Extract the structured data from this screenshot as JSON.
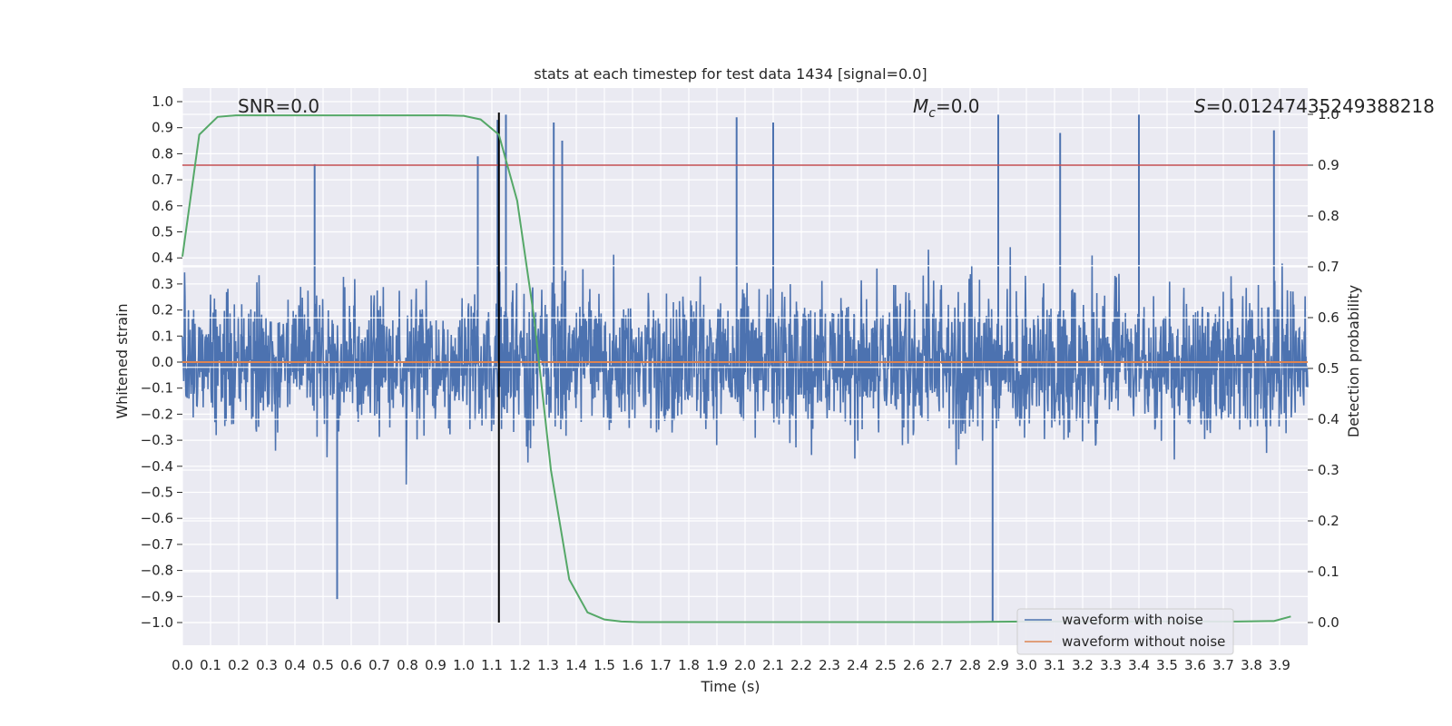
{
  "chart_data": {
    "type": "line",
    "title": "stats at each timestep for test data 1434 [signal=0.0]",
    "xlabel": "Time (s)",
    "ylabel": "Whitened strain",
    "y2label": "Detection probability",
    "xlim": [
      0.0,
      4.0
    ],
    "ylim": [
      -1.1,
      1.1
    ],
    "y2lim": [
      -0.05,
      1.0
    ],
    "x_ticks": [
      "0.0",
      "0.1",
      "0.2",
      "0.3",
      "0.4",
      "0.5",
      "0.6",
      "0.7",
      "0.8",
      "0.9",
      "1.0",
      "1.1",
      "1.2",
      "1.3",
      "1.4",
      "1.5",
      "1.6",
      "1.7",
      "1.8",
      "1.9",
      "2.0",
      "2.1",
      "2.2",
      "2.3",
      "2.4",
      "2.5",
      "2.6",
      "2.7",
      "2.8",
      "2.9",
      "3.0",
      "3.1",
      "3.2",
      "3.3",
      "3.4",
      "3.5",
      "3.6",
      "3.7",
      "3.8",
      "3.9"
    ],
    "y_ticks": [
      "1.0",
      "0.9",
      "0.8",
      "0.7",
      "0.6",
      "0.5",
      "0.4",
      "0.3",
      "0.2",
      "0.1",
      "0.0",
      "−0.1",
      "−0.2",
      "−0.3",
      "−0.4",
      "−0.5",
      "−0.6",
      "−0.7",
      "−0.8",
      "−0.9",
      "−1.0"
    ],
    "y2_ticks": [
      "1.0",
      "0.9",
      "0.8",
      "0.7",
      "0.6",
      "0.5",
      "0.4",
      "0.3",
      "0.2",
      "0.1",
      "0.0"
    ],
    "grid": true,
    "legend_position": "lower-right",
    "annotations": {
      "snr": "SNR=0.0",
      "mc_symbol": "M",
      "mc_sub": "c",
      "mc_value": "=0.0",
      "s_symbol": "S",
      "s_value": "=0.01247435249388218"
    },
    "series": [
      {
        "name": "waveform with noise",
        "axis": "left",
        "color": "#4c72b0",
        "description_range": [
          -1.0,
          0.95
        ],
        "peaks_x": [
          0.47,
          0.55,
          1.05,
          1.12,
          1.15,
          1.32,
          1.35,
          1.97,
          2.1,
          2.88,
          2.9,
          3.12,
          3.4,
          3.88
        ],
        "peaks_y": [
          0.76,
          -0.91,
          0.79,
          0.93,
          0.95,
          0.92,
          0.85,
          0.94,
          0.92,
          -1.0,
          0.95,
          0.88,
          0.95,
          0.89
        ]
      },
      {
        "name": "waveform without noise",
        "axis": "left",
        "color": "#dd8452",
        "x": [
          0.0,
          4.0
        ],
        "y": [
          0.0,
          0.0
        ]
      },
      {
        "axis": "right",
        "color": "#55a868",
        "x": [
          0.0,
          0.06,
          0.125,
          0.19,
          0.25,
          0.31,
          0.375,
          0.44,
          0.5,
          0.56,
          0.625,
          0.69,
          0.75,
          0.81,
          0.875,
          0.94,
          1.0,
          1.06,
          1.125,
          1.19,
          1.25,
          1.31,
          1.375,
          1.44,
          1.5,
          1.56,
          1.625,
          1.75,
          2.0,
          2.25,
          2.5,
          2.75,
          3.0,
          3.25,
          3.5,
          3.75,
          3.88,
          3.94
        ],
        "y": [
          0.72,
          0.96,
          0.995,
          0.998,
          0.998,
          0.998,
          0.998,
          0.998,
          0.998,
          0.998,
          0.998,
          0.998,
          0.998,
          0.998,
          0.998,
          0.998,
          0.997,
          0.99,
          0.96,
          0.83,
          0.6,
          0.3,
          0.085,
          0.02,
          0.006,
          0.002,
          0.001,
          0.001,
          0.001,
          0.001,
          0.001,
          0.001,
          0.002,
          0.002,
          0.002,
          0.002,
          0.003,
          0.012
        ]
      }
    ],
    "threshold_line": {
      "axis": "right",
      "y": 0.9,
      "color": "#c44e52"
    },
    "vertical_marker": {
      "x": 1.125,
      "color": "#000000"
    }
  }
}
